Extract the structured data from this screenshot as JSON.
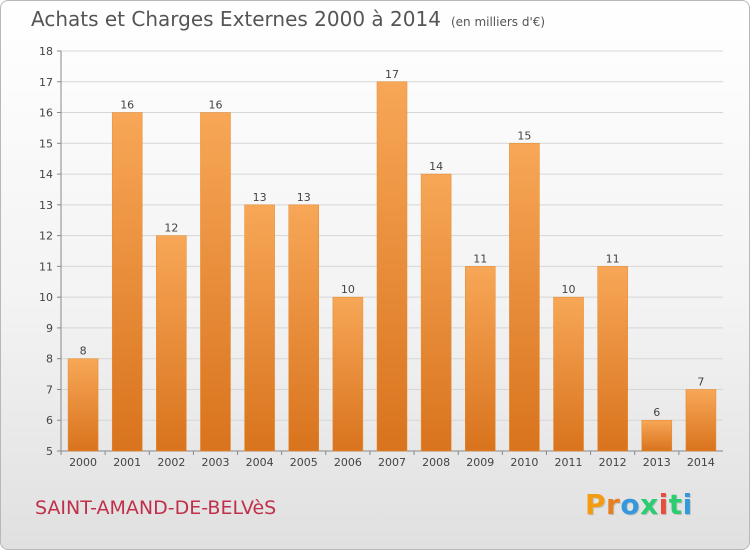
{
  "title": "Achats et Charges Externes 2000 à 2014",
  "unit_note": "(en milliers d'€)",
  "commune": "SAINT-AMAND-DE-BELVèS",
  "logo": {
    "text": "Proxiti",
    "colors": [
      "#f39c12",
      "#e67e22",
      "#3498db",
      "#2ecc71",
      "#e74c3c",
      "#2ecc71",
      "#3498db"
    ]
  },
  "chart_data": {
    "type": "bar",
    "categories": [
      "2000",
      "2001",
      "2002",
      "2003",
      "2004",
      "2005",
      "2006",
      "2007",
      "2008",
      "2009",
      "2010",
      "2011",
      "2012",
      "2013",
      "2014"
    ],
    "values": [
      8,
      16,
      12,
      16,
      13,
      13,
      10,
      17,
      14,
      11,
      15,
      10,
      11,
      6,
      7
    ],
    "ylim": [
      5,
      18
    ],
    "yticks": [
      5,
      6,
      7,
      8,
      9,
      10,
      11,
      12,
      13,
      14,
      15,
      16,
      17,
      18
    ],
    "grid": true,
    "bar_color_top": "#f7a757",
    "bar_color_bottom": "#d9731d"
  }
}
